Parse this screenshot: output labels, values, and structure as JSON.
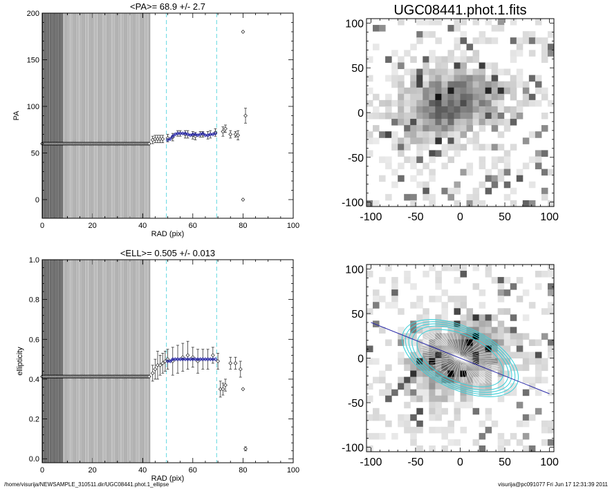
{
  "footer": {
    "path": "/home/visurija/NEWSAMPLE_310511.dir/UGC08441.phot.1_ellipse",
    "stamp": "visurija@pc091077  Fri Jun 17 12:31:39 2011"
  },
  "colors": {
    "dash_line": "#5fd7e0",
    "fit_points": "#2a2aa8",
    "ellipse": "#3fcfd8",
    "pa_line": "#2a2aa8"
  },
  "chart_data": [
    {
      "type": "scatter",
      "title": "<PA>=  68.9 +/-   2.7",
      "xlabel": "RAD (pix)",
      "ylabel": "PA",
      "xlim": [
        0,
        100
      ],
      "ylim": [
        -20,
        200
      ],
      "xticks": [
        0,
        20,
        40,
        60,
        80,
        100
      ],
      "yticks": [
        0,
        50,
        100,
        150,
        200
      ],
      "vlines": [
        49.5,
        69.5
      ],
      "inner_marker_range": [
        0,
        43
      ],
      "inner_value": 60,
      "points": [
        [
          44,
          64,
          4
        ],
        [
          45,
          65,
          4
        ],
        [
          46,
          65,
          4
        ],
        [
          47,
          65,
          4
        ],
        [
          48,
          65,
          4
        ],
        [
          50,
          66,
          4
        ],
        [
          52,
          67,
          4
        ],
        [
          54,
          71,
          3
        ],
        [
          55,
          71,
          3
        ],
        [
          57,
          70,
          4
        ],
        [
          58,
          70,
          4
        ],
        [
          60,
          69,
          4
        ],
        [
          61,
          68,
          4
        ],
        [
          63,
          70,
          3
        ],
        [
          64,
          70,
          3
        ],
        [
          66,
          69,
          4
        ],
        [
          67,
          70,
          4
        ],
        [
          69,
          72,
          4
        ],
        [
          72,
          73,
          5
        ],
        [
          73,
          76,
          4
        ],
        [
          75,
          70,
          4
        ],
        [
          77,
          70,
          3
        ],
        [
          78,
          69,
          5
        ],
        [
          80,
          0,
          0
        ],
        [
          80,
          180,
          0
        ],
        [
          81,
          90,
          8
        ]
      ],
      "fit_points": [
        [
          50,
          64
        ],
        [
          51,
          65
        ],
        [
          52,
          68
        ],
        [
          53,
          70
        ],
        [
          54,
          71
        ],
        [
          55,
          71
        ],
        [
          56,
          71
        ],
        [
          57,
          71
        ],
        [
          58,
          70
        ],
        [
          59,
          69
        ],
        [
          60,
          70
        ],
        [
          61,
          70
        ],
        [
          62,
          69
        ],
        [
          63,
          70
        ],
        [
          64,
          71
        ],
        [
          65,
          69
        ],
        [
          66,
          69
        ],
        [
          67,
          70
        ],
        [
          68,
          70
        ],
        [
          69,
          71
        ]
      ]
    },
    {
      "type": "scatter",
      "title": "<ELL>= 0.505 +/-  0.013",
      "xlabel": "RAD (pix)",
      "ylabel": "ellipticity",
      "xlim": [
        0,
        100
      ],
      "ylim": [
        -0.02,
        1.0
      ],
      "xticks": [
        0,
        20,
        40,
        60,
        80,
        100
      ],
      "yticks": [
        0.0,
        0.2,
        0.4,
        0.6,
        0.8,
        1.0
      ],
      "ytick_labels": [
        "0.0",
        "0.2",
        "0.4",
        "0.6",
        "0.8",
        "1.0"
      ],
      "vlines": [
        49.5,
        69.5
      ],
      "inner_marker_range": [
        0,
        43
      ],
      "inner_value": 0.413,
      "points": [
        [
          44,
          0.43,
          0.04
        ],
        [
          45,
          0.45,
          0.05
        ],
        [
          46,
          0.47,
          0.07
        ],
        [
          47,
          0.47,
          0.05
        ],
        [
          48,
          0.48,
          0.05
        ],
        [
          49,
          0.49,
          0.05
        ],
        [
          50,
          0.5,
          0.05
        ],
        [
          52,
          0.49,
          0.07
        ],
        [
          54,
          0.5,
          0.07
        ],
        [
          56,
          0.51,
          0.07
        ],
        [
          58,
          0.52,
          0.07
        ],
        [
          60,
          0.51,
          0.05
        ],
        [
          62,
          0.49,
          0.06
        ],
        [
          64,
          0.5,
          0.05
        ],
        [
          66,
          0.5,
          0.05
        ],
        [
          68,
          0.52,
          0.04
        ],
        [
          70,
          0.49,
          0.04
        ],
        [
          71,
          0.35,
          0.04
        ],
        [
          72,
          0.35,
          0.03
        ],
        [
          73,
          0.37,
          0.03
        ],
        [
          75,
          0.48,
          0.03
        ],
        [
          77,
          0.48,
          0.03
        ],
        [
          79,
          0.45,
          0.04
        ],
        [
          80,
          0.35,
          0.0
        ],
        [
          81,
          0.05,
          0.01
        ]
      ],
      "fit_points": [
        [
          50,
          0.49
        ],
        [
          51,
          0.49
        ],
        [
          52,
          0.5
        ],
        [
          53,
          0.5
        ],
        [
          54,
          0.5
        ],
        [
          55,
          0.5
        ],
        [
          56,
          0.5
        ],
        [
          57,
          0.5
        ],
        [
          58,
          0.5
        ],
        [
          59,
          0.5
        ],
        [
          60,
          0.5
        ],
        [
          61,
          0.5
        ],
        [
          62,
          0.5
        ],
        [
          63,
          0.5
        ],
        [
          64,
          0.5
        ],
        [
          65,
          0.5
        ],
        [
          66,
          0.5
        ],
        [
          67,
          0.5
        ],
        [
          68,
          0.5
        ],
        [
          69,
          0.5
        ]
      ]
    },
    {
      "type": "heatmap",
      "title": "UGC08441.phot.1.fits",
      "xlim": [
        -105,
        105
      ],
      "ylim": [
        -105,
        105
      ],
      "xticks": [
        -100,
        -50,
        0,
        50,
        100
      ],
      "yticks": [
        -100,
        -50,
        0,
        50,
        100
      ],
      "galaxy": {
        "x0": -10,
        "y0": 10,
        "sx": 55,
        "sy": 35,
        "angle_deg": 20
      }
    },
    {
      "type": "heatmap",
      "title": "",
      "xlim": [
        -105,
        105
      ],
      "ylim": [
        -105,
        105
      ],
      "xticks": [
        -100,
        -50,
        0,
        50,
        100
      ],
      "yticks": [
        -100,
        -50,
        0,
        50,
        100
      ],
      "galaxy": {
        "x0": 0,
        "y0": 0,
        "sx": 55,
        "sy": 35,
        "angle_deg": 22
      },
      "ellipses_a": [
        52,
        58,
        62,
        66,
        70
      ],
      "ellipse_ell": 0.5,
      "ellipse_pa_deg": 25,
      "pa_line": [
        [
          -100,
          40
        ],
        [
          100,
          -40
        ]
      ]
    }
  ]
}
